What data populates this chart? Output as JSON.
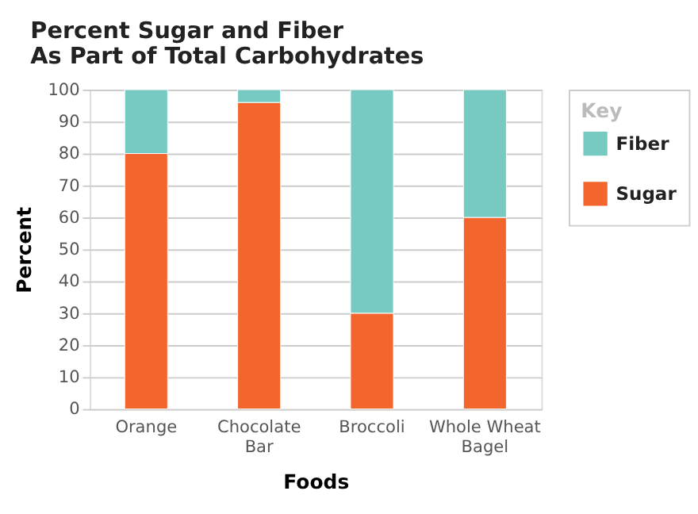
{
  "chart_data": {
    "type": "bar",
    "title": "Percent Sugar and Fiber\nAs Part of Total Carbohydrates",
    "xlabel": "Foods",
    "ylabel": "Percent",
    "legend_title": "Key",
    "categories": [
      "Orange",
      "Chocolate\nBar",
      "Broccoli",
      "Whole Wheat\nBagel"
    ],
    "series": [
      {
        "name": "Sugar",
        "color": "#f2652d",
        "values": [
          80,
          96,
          30,
          60
        ]
      },
      {
        "name": "Fiber",
        "color": "#76cac1",
        "values": [
          20,
          4,
          70,
          40
        ]
      }
    ],
    "stacked": true,
    "ylim": [
      0,
      100
    ],
    "yticks": [
      0,
      10,
      20,
      30,
      40,
      50,
      60,
      70,
      80,
      90,
      100
    ],
    "grid": "y",
    "legend": "right"
  }
}
